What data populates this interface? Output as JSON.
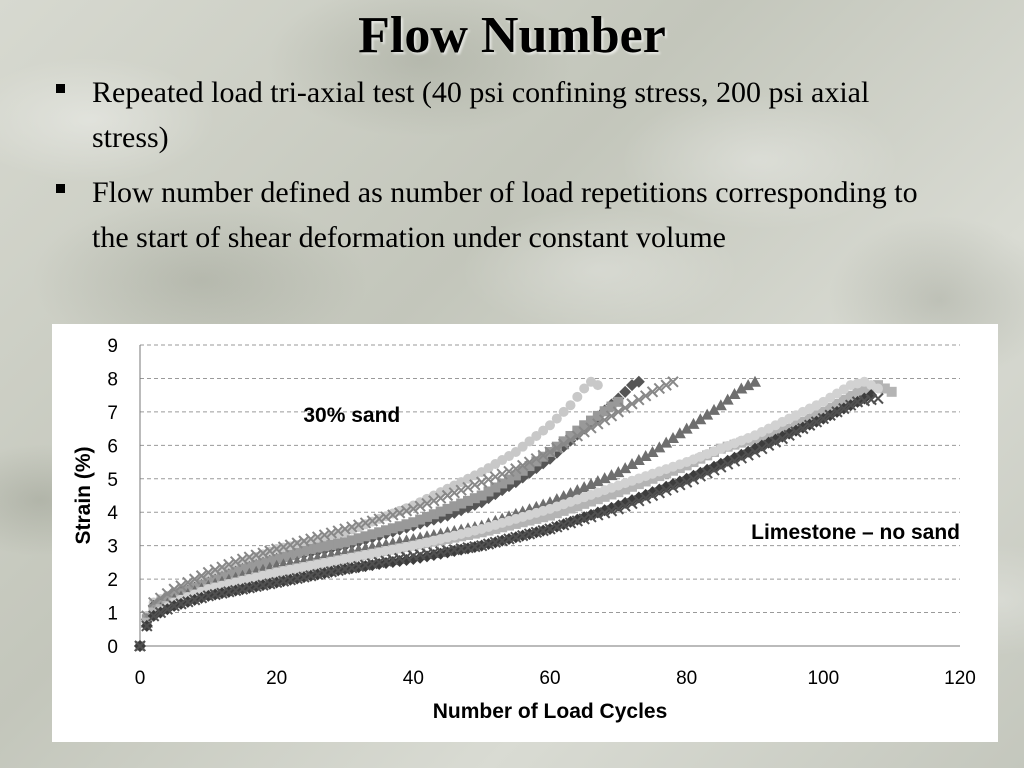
{
  "slide": {
    "title": "Flow Number",
    "bullets": [
      "Repeated load tri-axial test (40 psi confining stress, 200 psi axial stress)",
      "Flow number defined as number of load repetitions corresponding to the start of shear deformation under constant volume"
    ]
  },
  "chart_data": {
    "type": "scatter",
    "xlabel": "Number of Load Cycles",
    "ylabel": "Strain (%)",
    "xlim": [
      0,
      120
    ],
    "ylim": [
      0,
      9
    ],
    "xticks": [
      "0",
      "20",
      "40",
      "60",
      "80",
      "100",
      "120"
    ],
    "yticks": [
      "0",
      "1",
      "2",
      "3",
      "4",
      "5",
      "6",
      "7",
      "8",
      "9"
    ],
    "grid": "horizontal-dashed",
    "annotations": [
      "30% sand",
      "Limestone – no sand"
    ],
    "series": [
      {
        "marker": "circle",
        "color": "#c8c8c8",
        "x": [
          0,
          1,
          2,
          5,
          10,
          15,
          20,
          25,
          30,
          35,
          40,
          45,
          50,
          55,
          60,
          63,
          65,
          66,
          67
        ],
        "y": [
          0,
          0.9,
          1.3,
          1.6,
          2.1,
          2.5,
          2.9,
          3.1,
          3.4,
          3.8,
          4.2,
          4.7,
          5.2,
          5.8,
          6.6,
          7.2,
          7.7,
          7.9,
          7.8
        ]
      },
      {
        "marker": "diamond",
        "color": "#555555",
        "x": [
          0,
          1,
          2,
          5,
          10,
          15,
          20,
          25,
          30,
          35,
          40,
          45,
          50,
          55,
          60,
          65,
          70,
          72,
          73
        ],
        "y": [
          0,
          0.8,
          1.2,
          1.5,
          1.9,
          2.3,
          2.6,
          2.8,
          3.0,
          3.3,
          3.6,
          3.9,
          4.3,
          4.9,
          5.6,
          6.5,
          7.4,
          7.8,
          7.9
        ]
      },
      {
        "marker": "square",
        "color": "#999999",
        "x": [
          0,
          1,
          2,
          5,
          10,
          15,
          20,
          25,
          30,
          35,
          40,
          45,
          50,
          55,
          60,
          65,
          70
        ],
        "y": [
          0,
          0.8,
          1.1,
          1.5,
          1.9,
          2.3,
          2.6,
          2.9,
          3.1,
          3.4,
          3.7,
          4.1,
          4.5,
          5.1,
          5.8,
          6.6,
          7.3
        ]
      },
      {
        "marker": "x",
        "color": "#888888",
        "x": [
          0,
          1,
          2,
          5,
          10,
          15,
          20,
          25,
          30,
          35,
          40,
          45,
          50,
          55,
          60,
          65,
          70,
          75,
          78
        ],
        "y": [
          0,
          0.9,
          1.3,
          1.7,
          2.2,
          2.6,
          2.9,
          3.2,
          3.5,
          3.8,
          4.1,
          4.5,
          4.9,
          5.3,
          5.8,
          6.4,
          7.0,
          7.6,
          7.9
        ]
      },
      {
        "marker": "triangle",
        "color": "#6e6e6e",
        "x": [
          0,
          1,
          2,
          5,
          10,
          15,
          20,
          25,
          30,
          40,
          50,
          60,
          70,
          75,
          80,
          85,
          88,
          90
        ],
        "y": [
          0,
          0.7,
          1.0,
          1.4,
          1.8,
          2.1,
          2.4,
          2.6,
          2.8,
          3.2,
          3.6,
          4.3,
          5.2,
          5.8,
          6.5,
          7.2,
          7.7,
          7.9
        ]
      },
      {
        "marker": "square",
        "color": "#b4b4b4",
        "x": [
          0,
          1,
          2,
          5,
          10,
          20,
          30,
          40,
          50,
          60,
          70,
          80,
          85,
          90,
          95,
          100,
          105,
          108,
          110
        ],
        "y": [
          0,
          0.7,
          1.0,
          1.3,
          1.7,
          2.2,
          2.6,
          3.0,
          3.4,
          3.9,
          4.6,
          5.4,
          5.9,
          6.2,
          6.5,
          7.0,
          7.6,
          7.8,
          7.6
        ]
      },
      {
        "marker": "circle",
        "color": "#d2d2d2",
        "x": [
          0,
          1,
          2,
          5,
          10,
          20,
          30,
          40,
          50,
          60,
          70,
          80,
          90,
          100,
          104,
          106,
          108
        ],
        "y": [
          0,
          0.6,
          0.9,
          1.3,
          1.7,
          2.2,
          2.6,
          3.0,
          3.5,
          4.1,
          4.8,
          5.5,
          6.3,
          7.3,
          7.8,
          7.9,
          7.7
        ]
      },
      {
        "marker": "diamond",
        "color": "#3c3c3c",
        "x": [
          0,
          1,
          2,
          5,
          10,
          20,
          30,
          40,
          50,
          60,
          70,
          80,
          90,
          100,
          105,
          107
        ],
        "y": [
          0,
          0.6,
          0.9,
          1.2,
          1.5,
          1.9,
          2.3,
          2.6,
          3.0,
          3.5,
          4.2,
          5.0,
          5.9,
          6.8,
          7.3,
          7.5
        ]
      },
      {
        "marker": "x",
        "color": "#505050",
        "x": [
          0,
          1,
          2,
          5,
          10,
          20,
          30,
          40,
          50,
          60,
          70,
          80,
          90,
          100,
          105,
          108
        ],
        "y": [
          0,
          0.6,
          0.9,
          1.2,
          1.5,
          1.9,
          2.3,
          2.7,
          3.0,
          3.5,
          4.1,
          4.9,
          5.8,
          6.8,
          7.3,
          7.4
        ]
      }
    ]
  }
}
